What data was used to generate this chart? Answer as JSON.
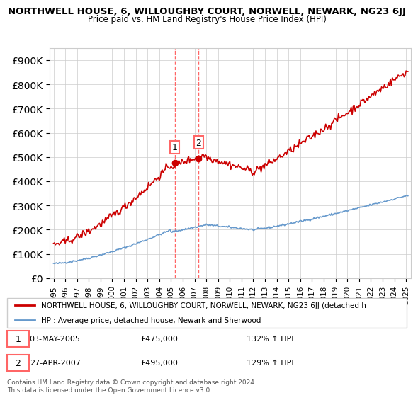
{
  "title1": "NORTHWELL HOUSE, 6, WILLOUGHBY COURT, NORWELL, NEWARK, NG23 6JJ",
  "title2": "Price paid vs. HM Land Registry's House Price Index (HPI)",
  "legend_label1": "NORTHWELL HOUSE, 6, WILLOUGHBY COURT, NORWELL, NEWARK, NG23 6JJ (detached h",
  "legend_label2": "HPI: Average price, detached house, Newark and Sherwood",
  "footer": "Contains HM Land Registry data © Crown copyright and database right 2024.\nThis data is licensed under the Open Government Licence v3.0.",
  "transaction1_date": "03-MAY-2005",
  "transaction1_price": "£475,000",
  "transaction1_hpi": "132% ↑ HPI",
  "transaction2_date": "27-APR-2007",
  "transaction2_price": "£495,000",
  "transaction2_hpi": "129% ↑ HPI",
  "hpi_color": "#6699cc",
  "price_color": "#cc0000",
  "marker_color": "#cc0000",
  "vline_color": "#ff6666",
  "ylim": [
    0,
    950000
  ],
  "yticks": [
    0,
    100000,
    200000,
    300000,
    400000,
    500000,
    600000,
    700000,
    800000,
    900000
  ]
}
